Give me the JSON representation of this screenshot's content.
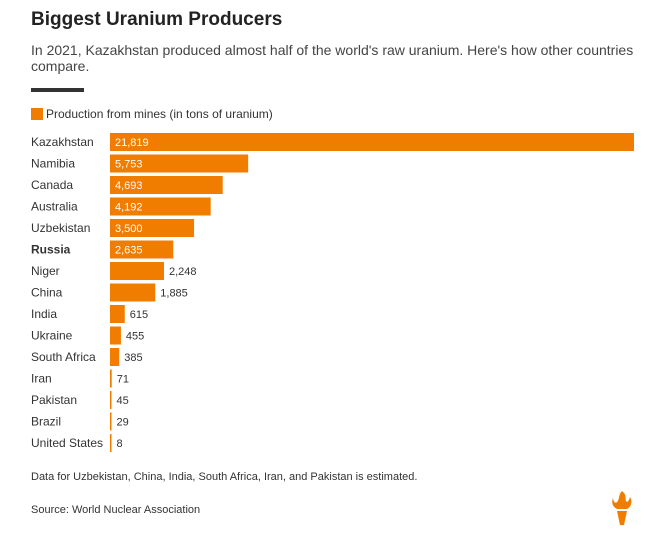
{
  "header": {
    "title": "Biggest Uranium Producers",
    "subtitle": "In 2021, Kazakhstan produced almost half of the world's raw uranium. Here's how other countries compare."
  },
  "legend": {
    "label": "Production from mines (in tons of uranium)"
  },
  "colors": {
    "bar": "#f07c00",
    "text": "#333333"
  },
  "chart_data": {
    "type": "bar",
    "orientation": "horizontal",
    "categories": [
      "Kazakhstan",
      "Namibia",
      "Canada",
      "Australia",
      "Uzbekistan",
      "Russia",
      "Niger",
      "China",
      "India",
      "Ukraine",
      "South Africa",
      "Iran",
      "Pakistan",
      "Brazil",
      "United States"
    ],
    "value_labels": [
      "21,819",
      "5,753",
      "4,693",
      "4,192",
      "3,500",
      "2,635",
      "2,248",
      "1,885",
      "615",
      "455",
      "385",
      "71",
      "45",
      "29",
      "8"
    ],
    "values": [
      21819,
      5753,
      4693,
      4192,
      3500,
      2635,
      2248,
      1885,
      615,
      455,
      385,
      71,
      45,
      29,
      8
    ],
    "highlighted": [
      "Russia"
    ],
    "series": [
      {
        "name": "Production from mines (in tons of uranium)",
        "values": [
          21819,
          5753,
          4693,
          4192,
          3500,
          2635,
          2248,
          1885,
          615,
          455,
          385,
          71,
          45,
          29,
          8
        ]
      }
    ],
    "xlim": [
      0,
      21819
    ],
    "legend_position": "top-left",
    "grid": false
  },
  "footer": {
    "note": "Data for Uzbekistan, China, India, South Africa, Iran, and Pakistan is estimated.",
    "source": "Source: World Nuclear Association"
  },
  "logo": {
    "icon": "rferl-torch-icon"
  }
}
